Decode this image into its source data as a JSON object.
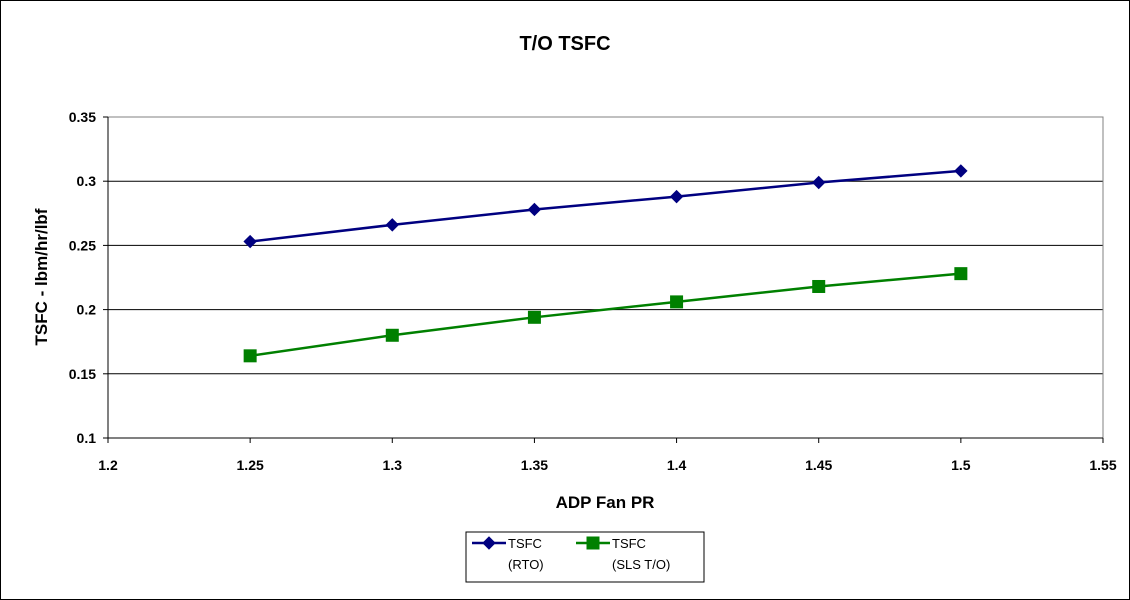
{
  "chart_data": {
    "type": "line",
    "title": "T/O TSFC",
    "xlabel": "ADP Fan PR",
    "ylabel": "TSFC - lbm/hr/lbf",
    "xlim": [
      1.2,
      1.55
    ],
    "ylim": [
      0.1,
      0.35
    ],
    "x_ticks": [
      "1.2",
      "1.25",
      "1.3",
      "1.35",
      "1.4",
      "1.45",
      "1.5",
      "1.55"
    ],
    "y_ticks": [
      "0.1",
      "0.15",
      "0.2",
      "0.25",
      "0.3",
      "0.35"
    ],
    "grid": "horizontal",
    "legend_position": "bottom",
    "x": [
      1.25,
      1.3,
      1.35,
      1.4,
      1.45,
      1.5
    ],
    "series": [
      {
        "name_line1": "TSFC",
        "name_line2": "(RTO)",
        "values": [
          0.253,
          0.266,
          0.278,
          0.288,
          0.299,
          0.308
        ],
        "color": "#000080",
        "marker": "diamond"
      },
      {
        "name_line1": "TSFC",
        "name_line2": "(SLS T/O)",
        "values": [
          0.164,
          0.18,
          0.194,
          0.206,
          0.218,
          0.228
        ],
        "color": "#008000",
        "marker": "square"
      }
    ]
  }
}
